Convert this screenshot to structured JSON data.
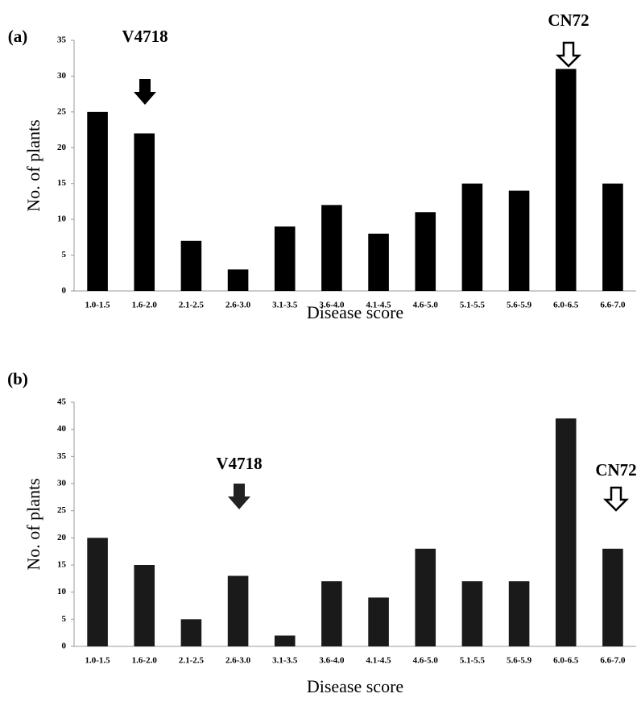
{
  "chart_data": [
    {
      "type": "bar",
      "panel_label": "(a)",
      "x_label": "Disease score",
      "y_label": "No. of plants",
      "categories": [
        "1.0-1.5",
        "1.6-2.0",
        "2.1-2.5",
        "2.6-3.0",
        "3.1-3.5",
        "3.6-4.0",
        "4.1-4.5",
        "4.6-5.0",
        "5.1-5.5",
        "5.6-5.9",
        "6.0-6.5",
        "6.6-7.0"
      ],
      "values": [
        25,
        22,
        7,
        3,
        9,
        12,
        8,
        11,
        15,
        14,
        31,
        15
      ],
      "color": "#000000",
      "ylim": [
        0,
        35
      ],
      "yticks": [
        0,
        5,
        10,
        15,
        20,
        25,
        30,
        35
      ],
      "annotations": [
        "V4718",
        "CN72"
      ]
    },
    {
      "type": "bar",
      "panel_label": "(b)",
      "x_label": "Disease score",
      "y_label": "No. of plants",
      "categories": [
        "1.0-1.5",
        "1.6-2.0",
        "2.1-2.5",
        "2.6-3.0",
        "3.1-3.5",
        "3.6-4.0",
        "4.1-4.5",
        "4.6-5.0",
        "5.1-5.5",
        "5.6-5.9",
        "6.0-6.5",
        "6.6-7.0"
      ],
      "values": [
        20,
        15,
        5,
        13,
        2,
        12,
        9,
        18,
        12,
        12,
        42,
        18
      ],
      "color": "#1a1a1a",
      "ylim": [
        0,
        45
      ],
      "yticks": [
        0,
        5,
        10,
        15,
        20,
        25,
        30,
        35,
        40,
        45
      ],
      "annotations": [
        "V4718",
        "CN72"
      ]
    }
  ]
}
